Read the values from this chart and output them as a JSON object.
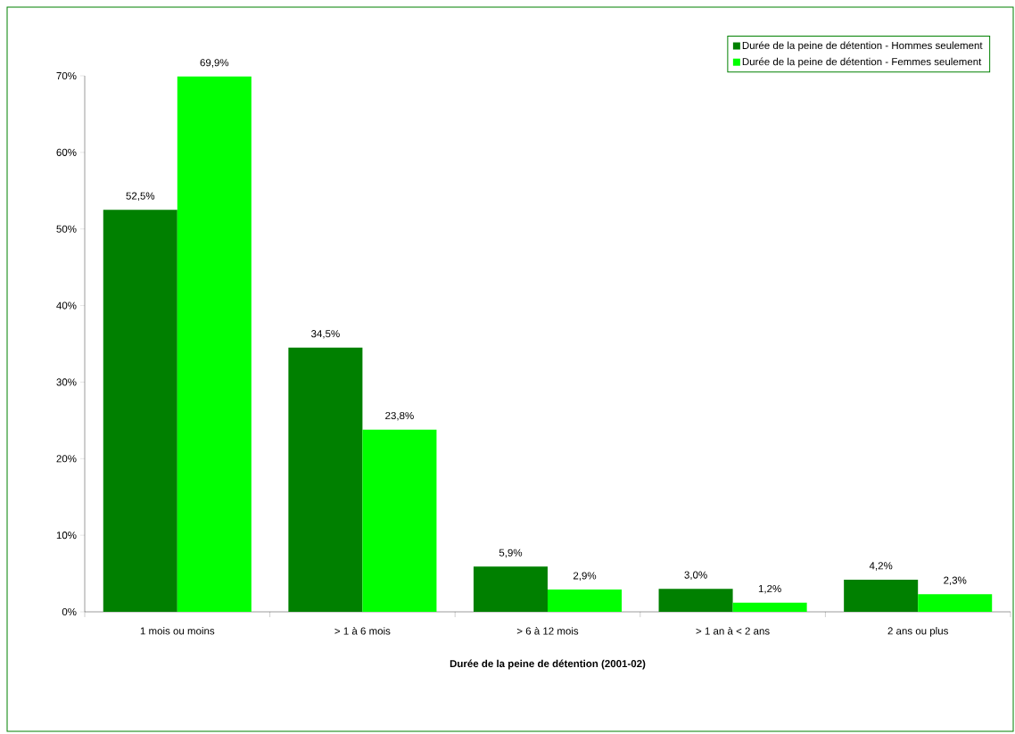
{
  "chart_data": {
    "type": "bar",
    "xlabel": "Durée de la peine de détention  (2001-02)",
    "categories": [
      "1 mois ou moins",
      "> 1 à 6 mois",
      "> 6 à 12 mois",
      "> 1 an à < 2 ans",
      "2 ans ou plus"
    ],
    "series": [
      {
        "name": "Durée de la peine de détention - Hommes seulement",
        "color": "#008000",
        "values": [
          52.5,
          34.5,
          5.9,
          3.0,
          4.2
        ],
        "value_labels": [
          "52,5%",
          "34,5%",
          "5,9%",
          "3,0%",
          "4,2%"
        ]
      },
      {
        "name": "Durée de la peine de détention - Femmes seulement",
        "color": "#00ff00",
        "values": [
          69.9,
          23.8,
          2.9,
          1.2,
          2.3
        ],
        "value_labels": [
          "69,9%",
          "23,8%",
          "2,9%",
          "1,2%",
          "2,3%"
        ]
      }
    ],
    "ylim": [
      0,
      70
    ],
    "yticks": [
      {
        "value": 0,
        "label": "0%"
      },
      {
        "value": 10,
        "label": "10%"
      },
      {
        "value": 20,
        "label": "20%"
      },
      {
        "value": 30,
        "label": "30%"
      },
      {
        "value": 40,
        "label": "40%"
      },
      {
        "value": 50,
        "label": "50%"
      },
      {
        "value": 60,
        "label": "60%"
      },
      {
        "value": 70,
        "label": "70%"
      }
    ],
    "legend": "top right",
    "grid": false
  }
}
